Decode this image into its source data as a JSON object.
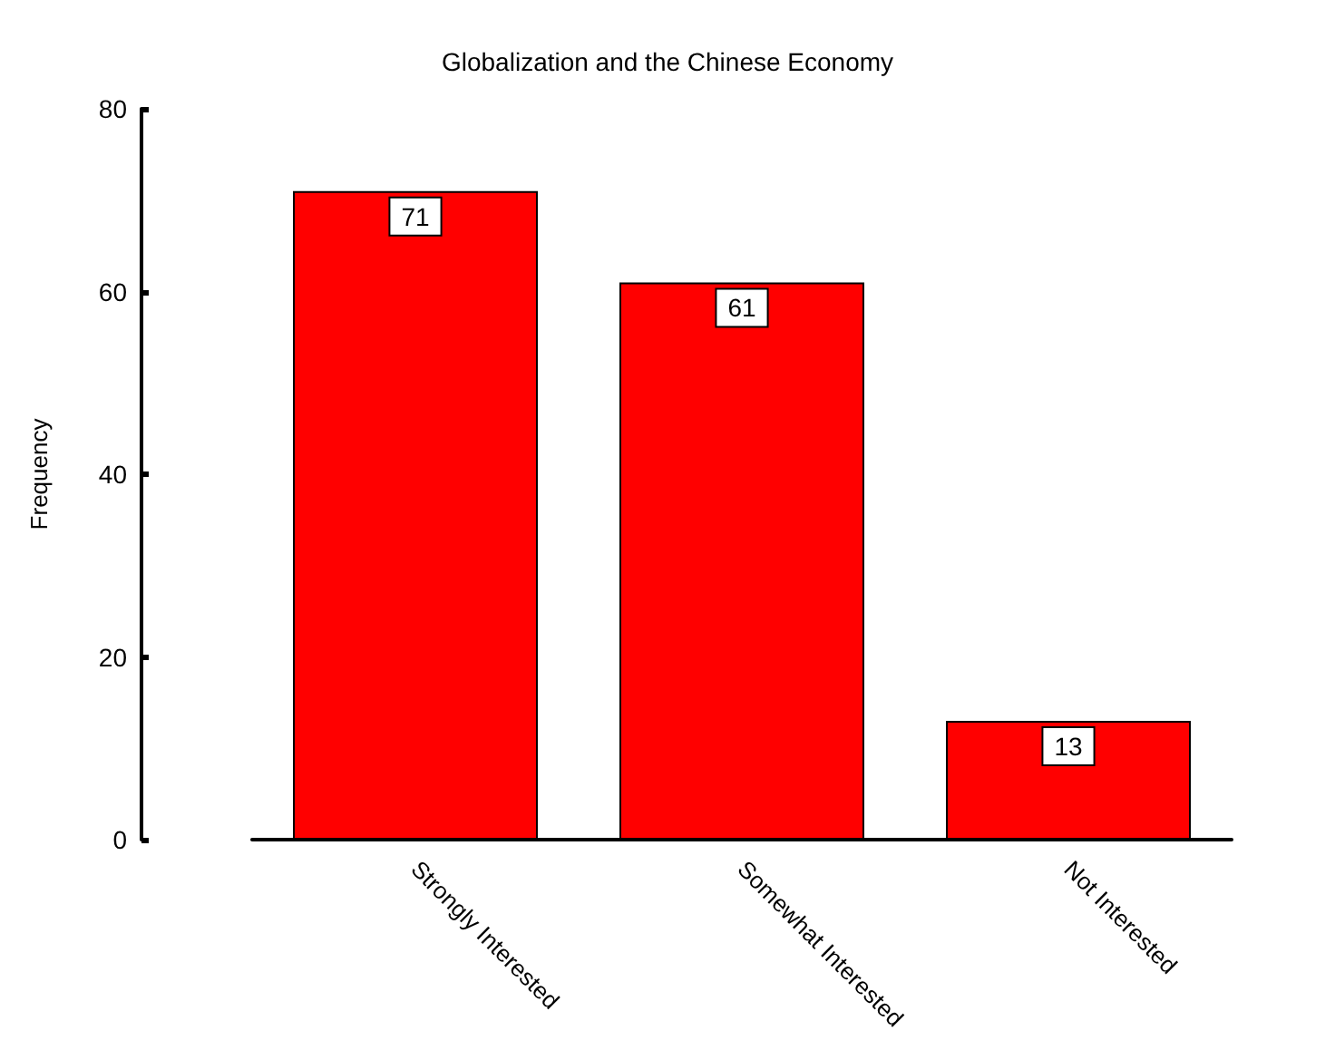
{
  "chart_data": {
    "type": "bar",
    "title": "Globalization and the Chinese Economy",
    "ylabel": "Frequency",
    "categories": [
      "Strongly Interested",
      "Somewhat Interested",
      "Not Interested"
    ],
    "values": [
      71,
      61,
      13
    ],
    "color": "#ff0000",
    "ylim": [
      0,
      80
    ],
    "yticks": [
      0,
      20,
      40,
      60,
      80
    ],
    "grid": false,
    "data_labels": true
  }
}
